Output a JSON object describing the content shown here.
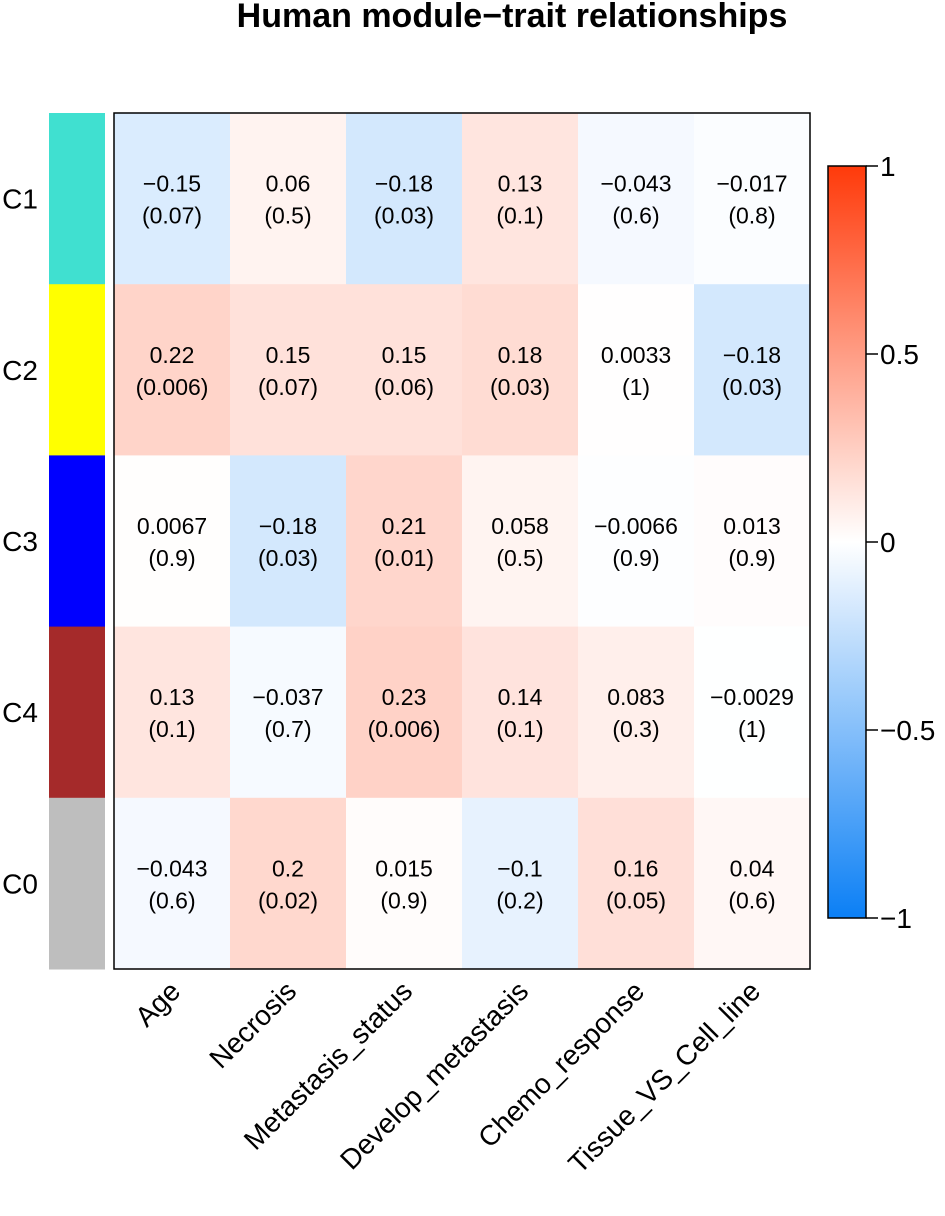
{
  "chart_data": {
    "type": "heatmap",
    "title": "Human module−trait relationships",
    "rows": [
      "C1",
      "C2",
      "C3",
      "C4",
      "C0"
    ],
    "row_colors": [
      "#40e0d0",
      "#ffff00",
      "#0000ff",
      "#a52a2a",
      "#bebebe"
    ],
    "columns": [
      "Age",
      "Necrosis",
      "Metastasis_status",
      "Develop_metastasis",
      "Chemo_response",
      "Tissue_VS_Cell_line"
    ],
    "values": [
      [
        -0.15,
        0.06,
        -0.18,
        0.13,
        -0.043,
        -0.017
      ],
      [
        0.22,
        0.15,
        0.15,
        0.18,
        0.0033,
        -0.18
      ],
      [
        0.0067,
        -0.18,
        0.21,
        0.058,
        -0.0066,
        0.013
      ],
      [
        0.13,
        -0.037,
        0.23,
        0.14,
        0.083,
        -0.0029
      ],
      [
        -0.043,
        0.2,
        0.015,
        -0.1,
        0.16,
        0.04
      ]
    ],
    "value_labels": [
      [
        "−0.15",
        "0.06",
        "−0.18",
        "0.13",
        "−0.043",
        "−0.017"
      ],
      [
        "0.22",
        "0.15",
        "0.15",
        "0.18",
        "0.0033",
        "−0.18"
      ],
      [
        "0.0067",
        "−0.18",
        "0.21",
        "0.058",
        "−0.0066",
        "0.013"
      ],
      [
        "0.13",
        "−0.037",
        "0.23",
        "0.14",
        "0.083",
        "−0.0029"
      ],
      [
        "−0.043",
        "0.2",
        "0.015",
        "−0.1",
        "0.16",
        "0.04"
      ]
    ],
    "pvalue_labels": [
      [
        "(0.07)",
        "(0.5)",
        "(0.03)",
        "(0.1)",
        "(0.6)",
        "(0.8)"
      ],
      [
        "(0.006)",
        "(0.07)",
        "(0.06)",
        "(0.03)",
        "(1)",
        "(0.03)"
      ],
      [
        "(0.9)",
        "(0.03)",
        "(0.01)",
        "(0.5)",
        "(0.9)",
        "(0.9)"
      ],
      [
        "(0.1)",
        "(0.7)",
        "(0.006)",
        "(0.1)",
        "(0.3)",
        "(1)"
      ],
      [
        "(0.6)",
        "(0.02)",
        "(0.9)",
        "(0.2)",
        "(0.05)",
        "(0.6)"
      ]
    ],
    "colorbar": {
      "range": [
        -1,
        1
      ],
      "ticks": [
        1,
        0.5,
        0,
        -0.5,
        -1
      ],
      "tick_labels": [
        "1",
        "0.5",
        "0",
        "−0.5",
        "−1"
      ],
      "low_color": "#0b7ff5",
      "mid_color": "#ffffff",
      "high_color": "#ff3a0a"
    }
  }
}
